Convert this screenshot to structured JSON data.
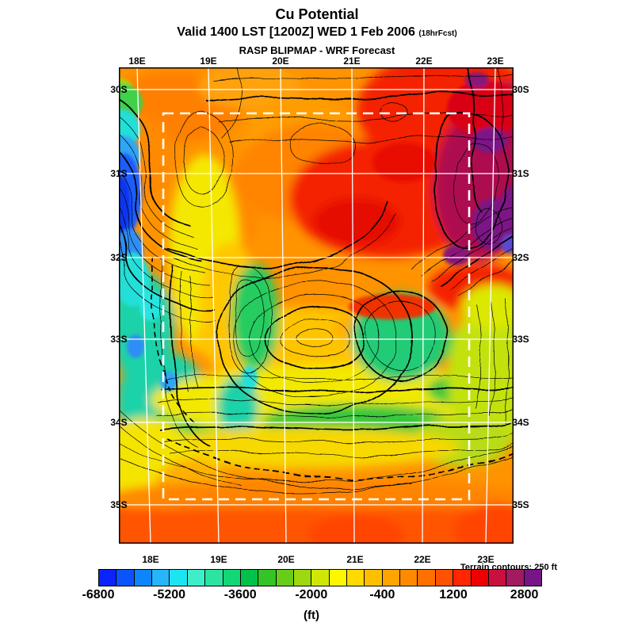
{
  "header": {
    "title": "Cu Potential",
    "valid_line": "Valid 1400 LST [1200Z] WED 1 Feb 2006",
    "forecast_tag": "(18hrFcst)",
    "model_line": "RASP BLIPMAP - WRF Forecast"
  },
  "map": {
    "terrain_note": "Terrain contours: 250 ft",
    "lon_ticks": [
      "18E",
      "19E",
      "20E",
      "21E",
      "22E",
      "23E"
    ],
    "lat_ticks": [
      "30S",
      "31S",
      "32S",
      "33S",
      "34S",
      "35S"
    ]
  },
  "colorbar": {
    "units": "(ft)",
    "tick_labels": [
      "-6800",
      "-5200",
      "-3600",
      "-2000",
      "-400",
      "1200",
      "2800"
    ],
    "colors": [
      "#0b24ff",
      "#0b53ff",
      "#0d85ff",
      "#27b4f8",
      "#1ce5f1",
      "#3fedc8",
      "#2ce4a1",
      "#14d677",
      "#00c24a",
      "#35c426",
      "#68cd18",
      "#9cd90e",
      "#cfe705",
      "#fdf800",
      "#ffd900",
      "#ffbf00",
      "#ffa400",
      "#ff8a00",
      "#ff7000",
      "#ff5200",
      "#ff2600",
      "#ef0000",
      "#c9103e",
      "#a01b60",
      "#771486"
    ]
  },
  "chart_data": {
    "type": "heatmap",
    "subtype": "filled-contour-map",
    "title": "Cu Potential",
    "subtitle": "Valid 1400 LST [1200Z] WED 1 Feb 2006 (18hrFcst)",
    "source_line": "RASP BLIPMAP - WRF Forecast",
    "variable": "Cumulus Potential",
    "units": "ft",
    "lon_range_deg_east": [
      17.75,
      23.25
    ],
    "lat_range_deg_south": [
      29.7,
      35.4
    ],
    "lon_gridlines_deg_east": [
      18,
      19,
      20,
      21,
      22,
      23
    ],
    "lat_gridlines_deg_south": [
      30,
      31,
      32,
      33,
      34,
      35
    ],
    "inner_domain_deg": {
      "west": 18.4,
      "east": 22.6,
      "north_south": 30.3,
      "south_south": 34.9
    },
    "colorscale": {
      "min_ft": -6800,
      "max_ft": 3200,
      "step_ft": 400,
      "labeled_every_ft": 1600
    },
    "terrain_contour_interval_ft": 250,
    "graticule": "white solid lines each 1 degree",
    "inner_domain_style": "white dashed rectangle",
    "regions_approx": [
      {
        "area": "west coast strip 18E 30.3S-33S",
        "value_ft": "-6800 to -2800 (blue/cyan minimum offshore)"
      },
      {
        "area": "cape peninsula / false bay 18.3-18.8E 33-34.3S",
        "value_ft": "-4000 to -1600 (teal/green)"
      },
      {
        "area": "northwest interior 18-20.5E 30-31.5S",
        "value_ft": "400 to 1200 (orange)"
      },
      {
        "area": "north-central 20-22E 30.5-32.5S",
        "value_ft": "1600 to 2400 (red maximum)"
      },
      {
        "area": "northeast corner 22-23.2E 29.7-32S",
        "value_ft": "2400 to 3200 (dark red/purple maximum)"
      },
      {
        "area": "central mountains 19-22E 32.5-34S",
        "value_ft": "-2400 to 0 (green/yellow over dense terrain contours)"
      },
      {
        "area": "east side 22.5-23.2E 32.5-34.5S",
        "value_ft": "-800 to -1600 (yellow-green)"
      },
      {
        "area": "south coast band 33.8-34.8S",
        "value_ft": "-400 to 800 (yellow/gold)"
      },
      {
        "area": "southern ocean south of 35S",
        "value_ft": "800 to 1600 (deep orange)"
      }
    ],
    "legend_position": "horizontal colorbar bottom",
    "grid_on": true
  }
}
